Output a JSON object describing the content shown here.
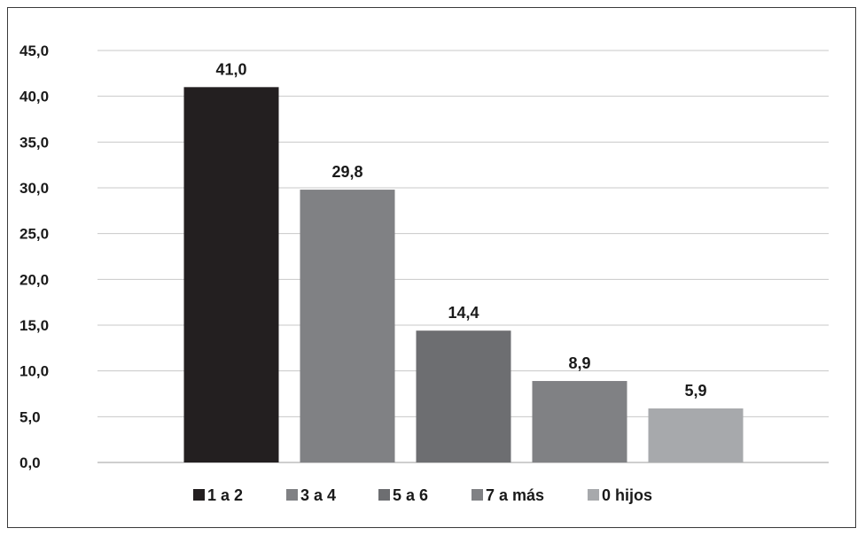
{
  "chart_data": {
    "type": "bar",
    "categories": [
      "1 a 2",
      "3 a 4",
      "5 a 6",
      "7 a más",
      "0 hijos"
    ],
    "values": [
      41.0,
      29.8,
      14.4,
      8.9,
      5.9
    ],
    "value_labels": [
      "41,0",
      "29,8",
      "14,4",
      "8,9",
      "5,9"
    ],
    "colors": [
      "#231f20",
      "#808184",
      "#6d6e71",
      "#808184",
      "#a7a9ac"
    ],
    "ylim": [
      0,
      45
    ],
    "yticks": [
      "0,0",
      "5,0",
      "10,0",
      "15,0",
      "20,0",
      "25,0",
      "30,0",
      "35,0",
      "40,0",
      "45,0"
    ],
    "grid": true,
    "legend_position": "bottom",
    "title": "",
    "xlabel": "",
    "ylabel": ""
  }
}
